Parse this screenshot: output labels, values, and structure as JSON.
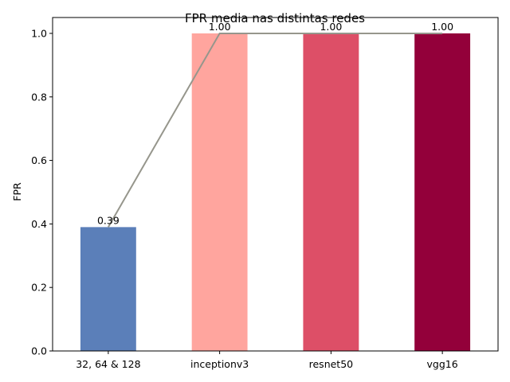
{
  "chart_data": {
    "type": "bar",
    "title": "FPR media nas distintas redes",
    "xlabel": "",
    "ylabel": "FPR",
    "categories": [
      "32, 64 & 128",
      "inceptionv3",
      "resnet50",
      "vgg16"
    ],
    "values": [
      0.39,
      1.0,
      1.0,
      1.0
    ],
    "value_labels": [
      "0.39",
      "1.00",
      "1.00",
      "1.00"
    ],
    "bar_colors": [
      "#5b7fb9",
      "#ffa59e",
      "#dd4f67",
      "#93003a"
    ],
    "overlay_line": {
      "values": [
        0.39,
        1.0,
        1.0,
        1.0
      ],
      "color": "#96968c"
    },
    "ylim": [
      0,
      1.05
    ],
    "yticks": [
      0.0,
      0.2,
      0.4,
      0.6,
      0.8,
      1.0
    ],
    "ytick_labels": [
      "0.0",
      "0.2",
      "0.4",
      "0.6",
      "0.8",
      "1.0"
    ],
    "grid": false,
    "legend": "none"
  }
}
